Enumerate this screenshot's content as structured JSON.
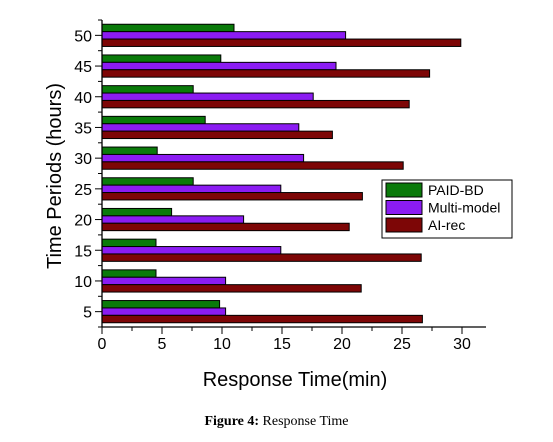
{
  "chart_data": {
    "type": "bar",
    "orientation": "horizontal",
    "categories": [
      "5",
      "10",
      "15",
      "20",
      "25",
      "30",
      "35",
      "40",
      "45",
      "50"
    ],
    "series": [
      {
        "name": "PAID-BD",
        "color": "#0a7a0a",
        "values": [
          9.8,
          4.5,
          4.5,
          5.8,
          7.6,
          4.6,
          8.6,
          7.6,
          9.9,
          11.0
        ]
      },
      {
        "name": "Multi-model",
        "color": "#8b1cf2",
        "values": [
          10.3,
          10.3,
          14.9,
          11.8,
          14.9,
          16.8,
          16.4,
          17.6,
          19.5,
          20.3
        ]
      },
      {
        "name": "AI-rec",
        "color": "#7d0606",
        "values": [
          26.7,
          21.6,
          26.6,
          20.6,
          21.7,
          25.1,
          19.2,
          25.6,
          27.3,
          29.9
        ]
      }
    ],
    "xlabel": "Response Time(min)",
    "ylabel": "Time Periods (hours)",
    "xlim": [
      0,
      32
    ],
    "xticks": [
      0,
      5,
      10,
      15,
      20,
      25,
      30
    ],
    "grid": false,
    "legend_position": "right"
  },
  "caption": {
    "label": "Figure 4:",
    "text": " Response Time"
  }
}
